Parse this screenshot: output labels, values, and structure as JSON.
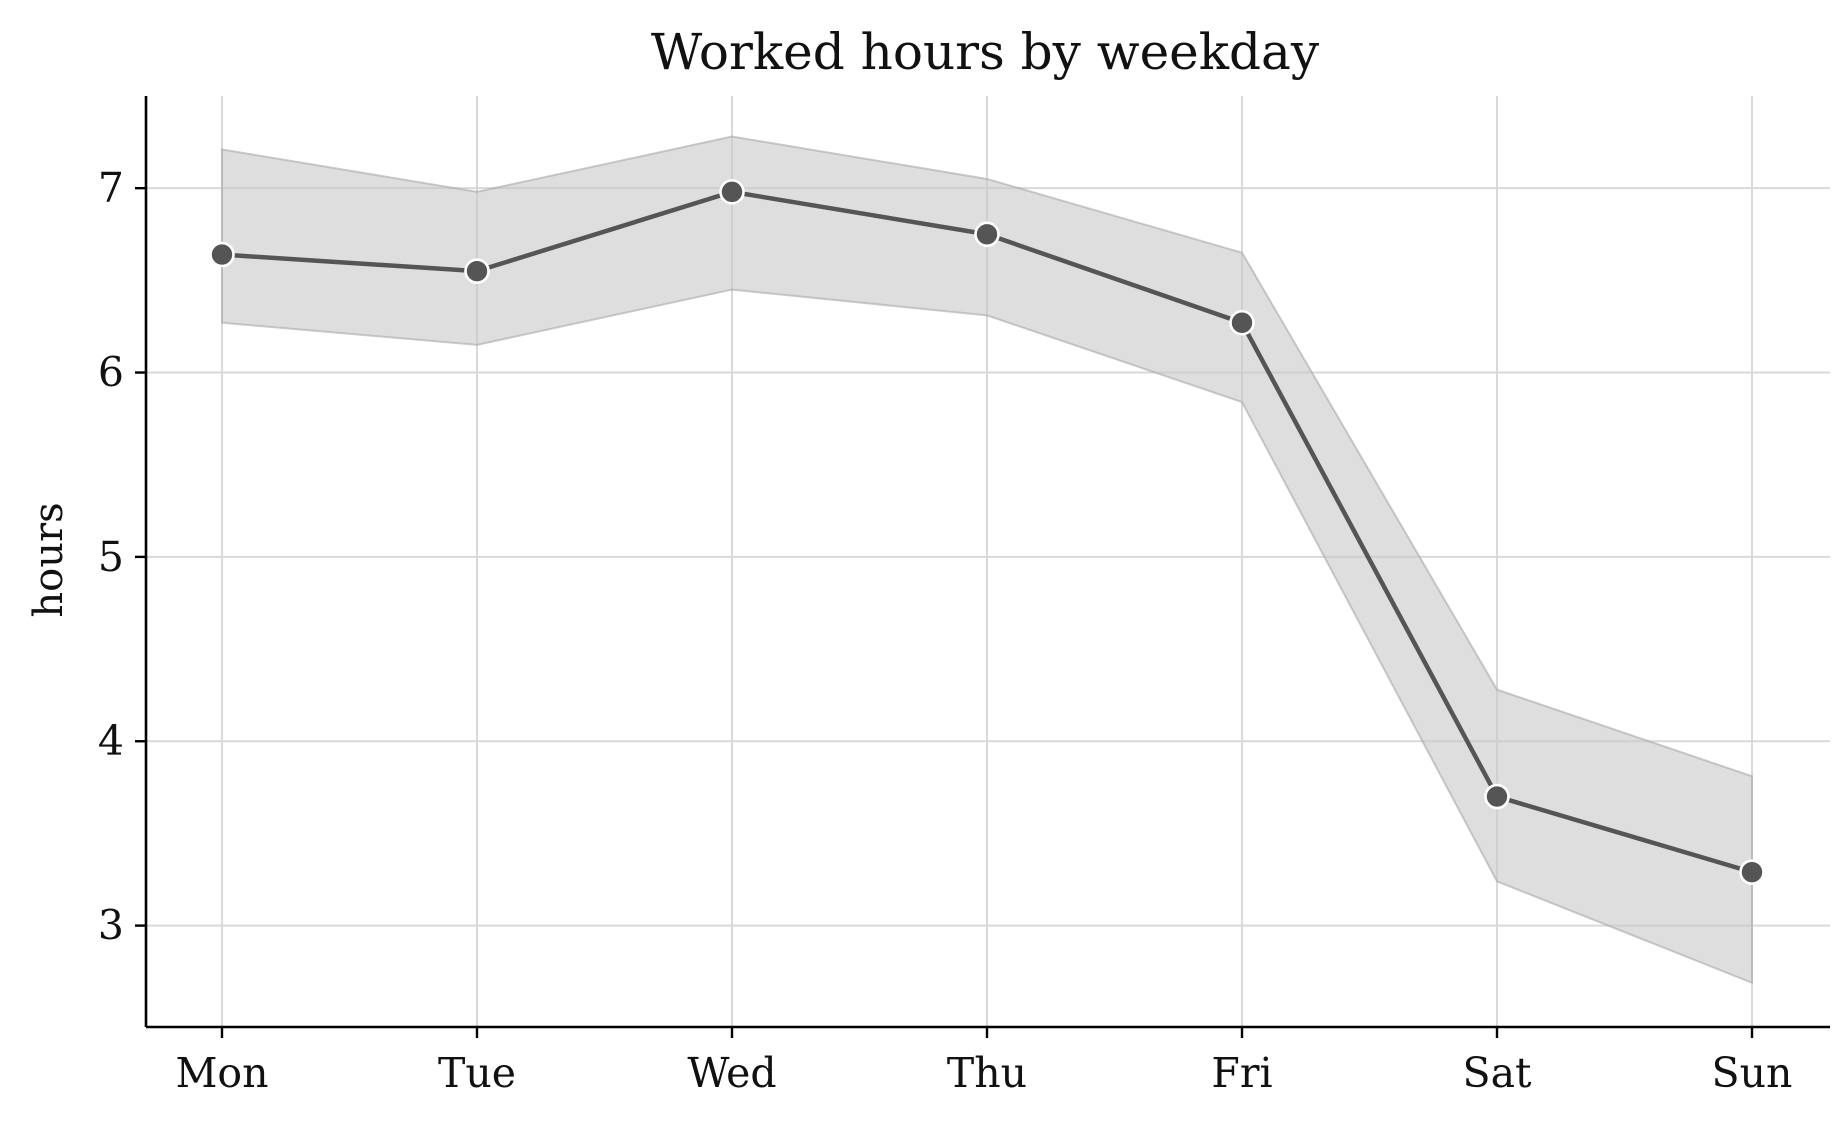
{
  "chart_data": {
    "type": "line",
    "title": "Worked hours by weekday",
    "xlabel": "",
    "ylabel": "hours",
    "categories": [
      "Mon",
      "Tue",
      "Wed",
      "Thu",
      "Fri",
      "Sat",
      "Sun"
    ],
    "series": [
      {
        "values": [
          6.64,
          6.55,
          6.98,
          6.75,
          6.27,
          3.7,
          3.29
        ],
        "lower": [
          6.27,
          6.15,
          6.45,
          6.31,
          5.84,
          3.24,
          2.69
        ],
        "upper": [
          7.21,
          6.98,
          7.28,
          7.05,
          6.65,
          4.28,
          3.81
        ],
        "color": "#555555"
      }
    ],
    "band_color": "#c8c8c8",
    "ylim": [
      2.45,
      7.5
    ],
    "yticks": [
      3,
      4,
      5,
      6,
      7
    ],
    "grid": true,
    "legend": "none"
  }
}
